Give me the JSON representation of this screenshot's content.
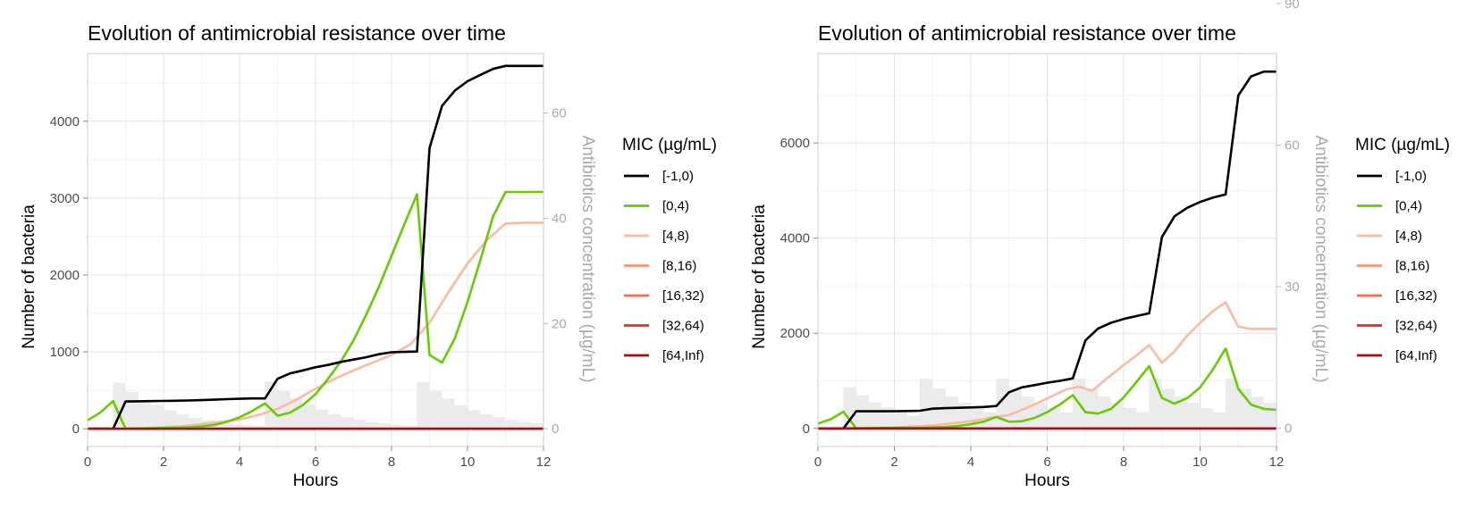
{
  "chart_data": [
    {
      "type": "line",
      "title": "Evolution of antimicrobial resistance over time",
      "xlabel": "Hours",
      "ylabel": "Number of bacteria",
      "y2label": "Antibiotics concentration (µg/mL)",
      "xlim": [
        0,
        12
      ],
      "ylim": [
        -230,
        4880
      ],
      "y2lim": [
        -3.37,
        71.3
      ],
      "xticks": [
        "0",
        "2",
        "4",
        "6",
        "8",
        "10",
        "12"
      ],
      "yticks": [
        0,
        1000,
        2000,
        3000,
        4000
      ],
      "y2ticks": [
        0,
        20,
        40,
        60
      ],
      "grid": true,
      "legend_title": "MIC (µg/mL)",
      "legend_position": "right",
      "antibiotic_bars": {
        "color": "#ebebeb",
        "bar_width_hours": 0.333,
        "x": [
          0.83,
          1.17,
          1.5,
          1.83,
          2.17,
          2.5,
          2.83,
          3.17,
          3.5,
          3.83,
          4.17,
          4.5,
          4.83,
          5.17,
          5.5,
          5.83,
          6.17,
          6.5,
          6.83,
          7.17,
          7.5,
          7.83,
          8.17,
          8.5,
          8.83,
          9.17,
          9.5,
          9.83,
          10.17,
          10.5,
          10.83,
          11.17,
          11.5,
          11.83
        ],
        "values": [
          8.7,
          7.0,
          5.5,
          4.5,
          3.5,
          2.7,
          2.1,
          1.6,
          1.2,
          0.9,
          0.7,
          0.5,
          9.0,
          7.2,
          5.8,
          4.6,
          3.6,
          2.8,
          2.2,
          1.7,
          1.3,
          1.0,
          0.8,
          0.6,
          8.9,
          7.1,
          5.7,
          4.5,
          3.5,
          2.8,
          2.2,
          1.7,
          1.3,
          1.0
        ]
      },
      "series": [
        {
          "name": "[-1,0)",
          "color": "#000000",
          "x": [
            0,
            0.67,
            1,
            1.33,
            1.67,
            2,
            2.33,
            2.67,
            3,
            3.33,
            3.67,
            4,
            4.33,
            4.67,
            5,
            5.33,
            5.67,
            6,
            6.33,
            6.67,
            7,
            7.33,
            7.67,
            8,
            8.33,
            8.67,
            9,
            9.33,
            9.67,
            10,
            10.33,
            10.67,
            11,
            11.33,
            11.67,
            12
          ],
          "values": [
            0,
            0,
            355,
            358,
            360,
            362,
            365,
            368,
            373,
            378,
            385,
            390,
            395,
            395,
            650,
            720,
            760,
            800,
            830,
            870,
            900,
            930,
            970,
            995,
            1000,
            1005,
            3650,
            4200,
            4400,
            4520,
            4600,
            4680,
            4720,
            4720,
            4720,
            4720
          ]
        },
        {
          "name": "[0,4)",
          "color": "#66cc00",
          "x": [
            0,
            0.33,
            0.67,
            1,
            1.33,
            1.67,
            2,
            2.33,
            2.67,
            3,
            3.33,
            3.67,
            4,
            4.33,
            4.67,
            5,
            5.33,
            5.67,
            6,
            6.33,
            6.67,
            7,
            7.33,
            7.67,
            8,
            8.33,
            8.67,
            9,
            9.33,
            9.67,
            10,
            10.33,
            10.67,
            11,
            11.33,
            11.67,
            12
          ],
          "values": [
            110,
            210,
            360,
            0,
            5,
            8,
            12,
            15,
            20,
            30,
            50,
            90,
            150,
            230,
            330,
            170,
            210,
            310,
            450,
            650,
            880,
            1150,
            1480,
            1850,
            2250,
            2650,
            3050,
            960,
            860,
            1180,
            1650,
            2180,
            2760,
            3080,
            3080,
            3080,
            3080
          ]
        },
        {
          "name": "[4,8)",
          "color": "#fcbba1",
          "x": [
            0,
            1,
            1.5,
            2,
            2.5,
            3,
            3.5,
            4,
            4.5,
            5,
            5.5,
            6,
            6.5,
            7,
            7.5,
            8,
            8.5,
            9,
            9.5,
            10,
            10.5,
            11,
            11.5,
            12
          ],
          "values": [
            0,
            5,
            10,
            20,
            35,
            60,
            90,
            120,
            180,
            260,
            380,
            520,
            650,
            760,
            860,
            960,
            1100,
            1380,
            1780,
            2150,
            2450,
            2670,
            2680,
            2680
          ]
        },
        {
          "name": "[8,16)",
          "color": "#fc9272",
          "x": [
            0,
            12
          ],
          "values": [
            0,
            0
          ]
        },
        {
          "name": "[16,32)",
          "color": "#fb6a4a",
          "x": [
            0,
            12
          ],
          "values": [
            0,
            0
          ]
        },
        {
          "name": "[32,64)",
          "color": "#de2d26",
          "x": [
            0,
            12
          ],
          "values": [
            0,
            0
          ]
        },
        {
          "name": "[64,Inf)",
          "color": "#a50f15",
          "x": [
            0,
            12
          ],
          "values": [
            0,
            0
          ]
        }
      ]
    },
    {
      "type": "line",
      "title": "Evolution of antimicrobial resistance over time",
      "xlabel": "Hours",
      "ylabel": "Number of bacteria",
      "y2label": "Antibiotics concentration (µg/mL)",
      "xlim": [
        0,
        12
      ],
      "ylim": [
        -380,
        7880
      ],
      "y2lim": [
        -3.85,
        79.4
      ],
      "xticks": [
        "0",
        "2",
        "4",
        "6",
        "8",
        "10",
        "12"
      ],
      "yticks": [
        0,
        2000,
        4000,
        6000
      ],
      "y2ticks": [
        0,
        30,
        60,
        90
      ],
      "grid": true,
      "legend_title": "MIC (µg/mL)",
      "legend_position": "right",
      "antibiotic_bars": {
        "color": "#ebebeb",
        "bar_width_hours": 0.333,
        "x": [
          0.83,
          1.17,
          1.5,
          1.83,
          2.17,
          2.5,
          2.83,
          3.17,
          3.5,
          3.83,
          4.17,
          4.5,
          4.83,
          5.17,
          5.5,
          5.83,
          6.17,
          6.5,
          6.83,
          7.17,
          7.5,
          7.83,
          8.17,
          8.5,
          8.83,
          9.17,
          9.5,
          9.83,
          10.17,
          10.5,
          10.83,
          11.17,
          11.5,
          11.83
        ],
        "values": [
          8.7,
          7.0,
          5.5,
          4.5,
          3.5,
          2.7,
          10.5,
          8.4,
          6.7,
          5.4,
          4.3,
          3.4,
          10.5,
          8.4,
          6.7,
          5.4,
          4.3,
          3.4,
          10.5,
          8.4,
          6.7,
          5.4,
          4.3,
          3.4,
          10.5,
          8.4,
          6.7,
          5.4,
          4.3,
          3.4,
          10.5,
          8.4,
          6.7,
          5.4
        ]
      },
      "series": [
        {
          "name": "[-1,0)",
          "color": "#000000",
          "x": [
            0,
            0.67,
            1,
            1.33,
            1.67,
            2,
            2.33,
            2.67,
            3,
            3.33,
            3.67,
            4,
            4.33,
            4.67,
            5,
            5.33,
            5.67,
            6,
            6.33,
            6.67,
            7,
            7.33,
            7.67,
            8,
            8.33,
            8.67,
            9,
            9.33,
            9.67,
            10,
            10.33,
            10.67,
            11,
            11.33,
            11.67,
            12
          ],
          "values": [
            0,
            0,
            360,
            360,
            360,
            362,
            365,
            370,
            415,
            425,
            432,
            440,
            450,
            470,
            760,
            860,
            910,
            960,
            1000,
            1050,
            1850,
            2100,
            2220,
            2300,
            2360,
            2420,
            4020,
            4460,
            4640,
            4760,
            4850,
            4920,
            7000,
            7400,
            7500,
            7500
          ]
        },
        {
          "name": "[0,4)",
          "color": "#66cc00",
          "x": [
            0,
            0.33,
            0.67,
            1,
            1.33,
            1.67,
            2,
            2.33,
            2.67,
            3,
            3.33,
            3.67,
            4,
            4.33,
            4.67,
            5,
            5.33,
            5.67,
            6,
            6.33,
            6.67,
            7,
            7.33,
            7.67,
            8,
            8.33,
            8.67,
            9,
            9.33,
            9.67,
            10,
            10.33,
            10.67,
            11,
            11.33,
            11.67,
            12
          ],
          "values": [
            100,
            190,
            350,
            0,
            5,
            8,
            10,
            12,
            15,
            20,
            30,
            50,
            90,
            140,
            240,
            140,
            150,
            220,
            340,
            500,
            700,
            340,
            310,
            410,
            650,
            970,
            1310,
            640,
            520,
            640,
            860,
            1230,
            1680,
            830,
            500,
            410,
            390
          ]
        },
        {
          "name": "[4,8)",
          "color": "#fcbba1",
          "x": [
            0,
            1,
            2,
            3,
            4,
            4.5,
            5,
            5.5,
            6,
            6.5,
            6.83,
            7.17,
            7.5,
            8,
            8.5,
            8.67,
            9,
            9.33,
            9.67,
            10,
            10.33,
            10.67,
            11,
            11.33,
            11.67,
            12
          ],
          "values": [
            0,
            5,
            20,
            60,
            150,
            220,
            280,
            440,
            630,
            820,
            880,
            790,
            1010,
            1330,
            1640,
            1750,
            1380,
            1620,
            1960,
            2220,
            2460,
            2650,
            2140,
            2090,
            2090,
            2090
          ]
        },
        {
          "name": "[8,16)",
          "color": "#fc9272",
          "x": [
            0,
            12
          ],
          "values": [
            0,
            0
          ]
        },
        {
          "name": "[16,32)",
          "color": "#fb6a4a",
          "x": [
            0,
            12
          ],
          "values": [
            0,
            0
          ]
        },
        {
          "name": "[32,64)",
          "color": "#de2d26",
          "x": [
            0,
            12
          ],
          "values": [
            0,
            0
          ]
        },
        {
          "name": "[64,Inf)",
          "color": "#a50f15",
          "x": [
            0,
            12
          ],
          "values": [
            0,
            0
          ]
        }
      ]
    }
  ]
}
